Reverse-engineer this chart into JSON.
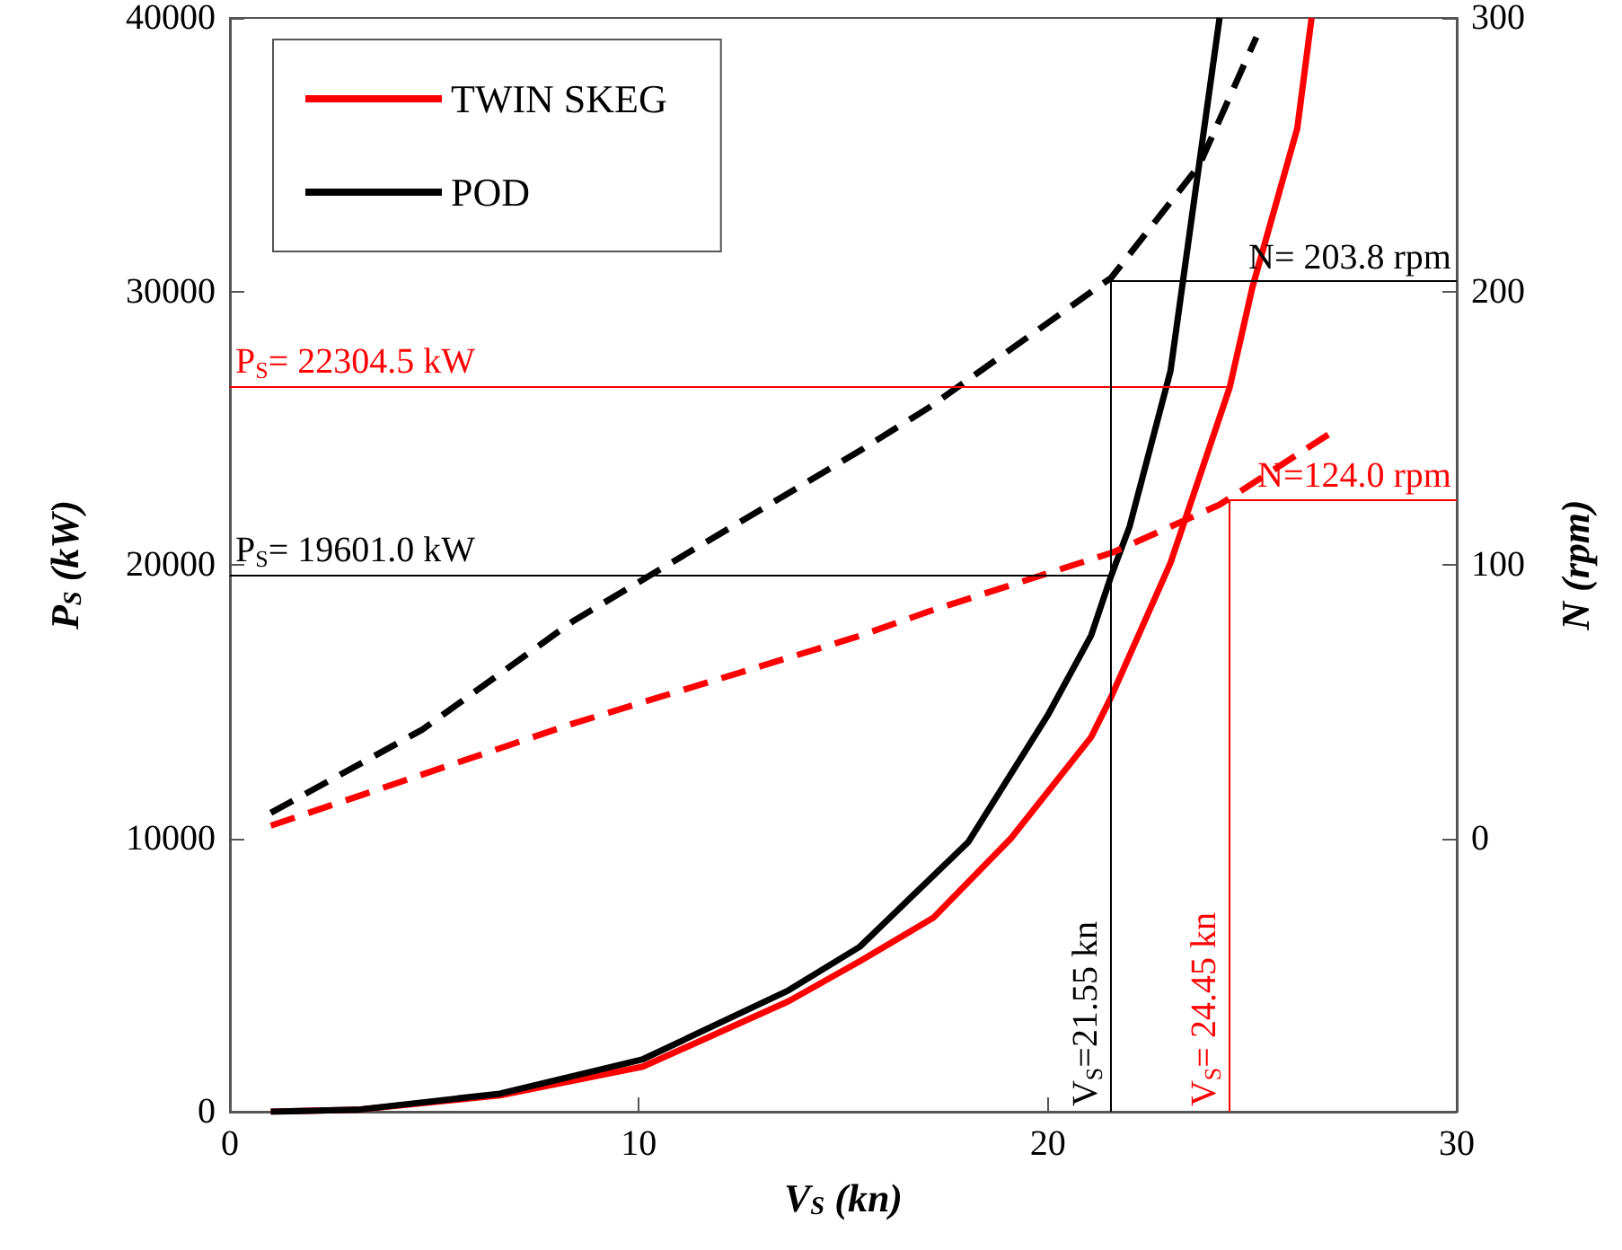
{
  "chart_data": {
    "type": "line",
    "xlabel": "V$_{S}$ (kn)",
    "ylabel": "P$_{S}$ (kW)",
    "y2label": "N (rpm)",
    "xlim": [
      0,
      30
    ],
    "xticks": [
      0,
      10,
      20,
      30
    ],
    "ylim": [
      0,
      40000
    ],
    "yticks": [
      0,
      10000,
      20000,
      30000,
      40000
    ],
    "y2lim": [
      -100,
      300
    ],
    "y2ticks": [
      0,
      100,
      200,
      300
    ],
    "annotations": [
      "P$_{S}$= 22304.5 kW"
    ],
    "grid": false,
    "legend": "top left",
    "marker": "none",
    "series": [
      {
        "name": "TWIN SKEG",
        "color": "#ff0000",
        "line_style": "solid",
        "x": [
          1,
          3.1,
          6.6,
          10.1,
          13.66,
          15.4,
          17.2,
          19.1,
          21.06,
          21.55,
          23.0,
          24.45,
          25.0,
          26.1,
          26.45
        ],
        "values": [
          0,
          70,
          600,
          1650,
          4040,
          5500,
          7090,
          10000,
          13700,
          15170,
          20070,
          26500,
          30130,
          35960,
          40000
        ]
      },
      {
        "name": "POD",
        "color": "#000000",
        "line_style": "solid",
        "x": [
          1,
          3.1,
          6.6,
          10.1,
          13.66,
          15.4,
          18.06,
          20.0,
          21.06,
          21.55,
          22.0,
          23.0,
          23.7,
          24.2
        ],
        "values": [
          0,
          70,
          660,
          1920,
          4440,
          6030,
          9870,
          14500,
          17420,
          19600,
          21400,
          27090,
          34640,
          40000
        ]
      },
      {
        "color": "#ff0000",
        "line_style": "dashed",
        "axis": "y2",
        "x": [
          1,
          8.4,
          15.4,
          17.1,
          21.6,
          24.2,
          27.0
        ],
        "values": [
          4.6,
          42,
          74,
          83,
          104.6,
          122,
          149
        ]
      },
      {
        "color": "#000000",
        "line_style": "dashed",
        "axis": "y2",
        "x": [
          1,
          4.7,
          8.4,
          15.4,
          17.1,
          21.55,
          23.7,
          25.1
        ],
        "values": [
          9.3,
          39.7,
          79.5,
          141.7,
          157.6,
          205,
          246,
          293
        ]
      }
    ],
    "ref_lines": [
      {
        "axis": "y",
        "value": 26500,
        "color": "#ff0000"
      },
      {
        "axis": "y",
        "value": 19601,
        "label": "P$_{S}$= 19601.0 kW",
        "color": "#000000"
      },
      {
        "axis": "x",
        "value": 21.55,
        "label": "V$_{S}$=21.55 kn",
        "color": "#000000"
      },
      {
        "axis": "x",
        "value": 24.45,
        "label": "V$_{S}$= 24.45 kn",
        "color": "#ff0000"
      },
      {
        "axis": "y2",
        "value": 203.8,
        "label": "N= 203.8 rpm",
        "color": "#000000"
      },
      {
        "axis": "y2",
        "value": 124.0,
        "label": "N=124.0 rpm",
        "color": "#ff0000"
      }
    ]
  }
}
